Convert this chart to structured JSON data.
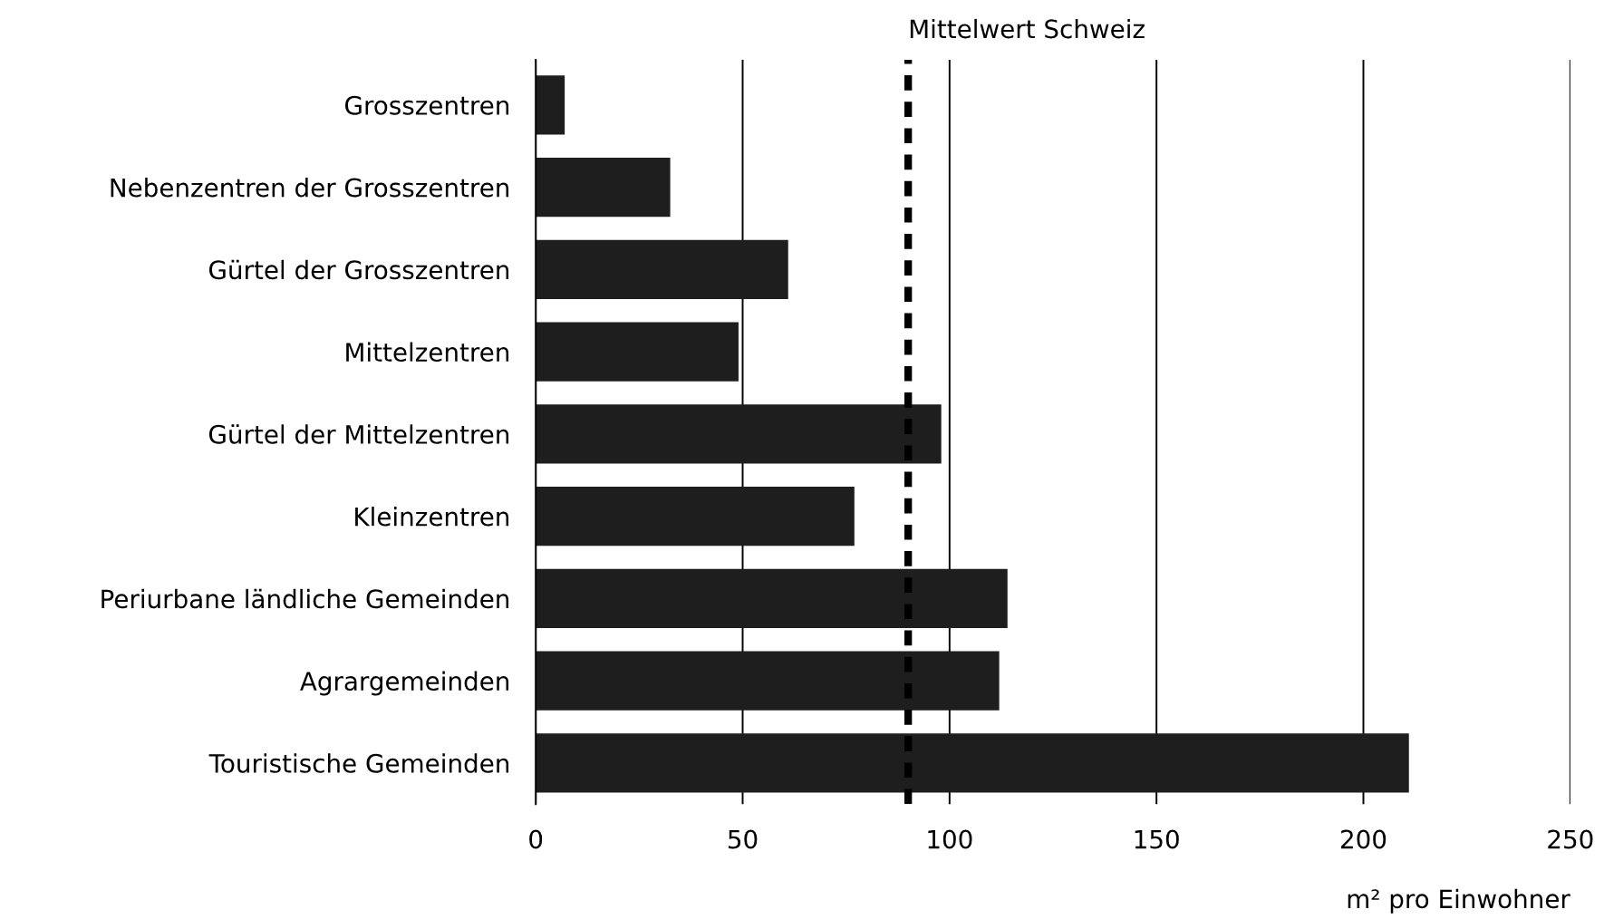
{
  "chart_data": {
    "type": "bar",
    "orientation": "horizontal",
    "xlabel": "m² pro Einwohner",
    "categories": [
      "Grosszentren",
      "Nebenzentren der Grosszentren",
      "Gürtel der Grosszentren",
      "Mittelzentren",
      "Gürtel der Mittelzentren",
      "Kleinzentren",
      "Periurbane ländliche Gemeinden",
      "Agrargemeinden",
      "Touristische Gemeinden"
    ],
    "values": [
      7,
      32.5,
      61,
      49,
      98,
      77,
      114,
      112,
      211
    ],
    "color": "#1e1e1e",
    "xlim": [
      0,
      250
    ],
    "xticks": [
      0,
      50,
      100,
      150,
      200,
      250
    ],
    "grid": "x",
    "ref_lines": [
      {
        "axis": "x",
        "value": 90,
        "label": "Mittelwert Schweiz",
        "color": "#000000",
        "line_style": "dashed"
      }
    ]
  }
}
